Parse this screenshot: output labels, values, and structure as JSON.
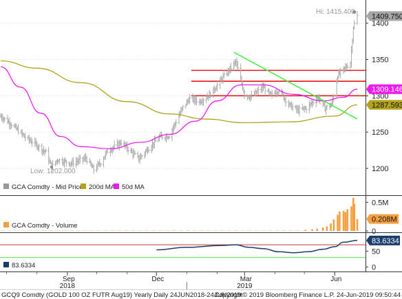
{
  "chart_data": {
    "type": "ohlc",
    "footer": {
      "left": "GCQ9 Comdty (GOLD 100 OZ FUTR  Aug19) Yearly  Daily 24JUN2018-24JUN2019",
      "right": "Copyright© 2019 Bloomberg Finance L.P.     24-Jun-2019 09:50:44"
    },
    "x_axis": {
      "months": [
        "Sep",
        "Dec",
        "Mar",
        "Jun"
      ],
      "years": [
        "2018",
        "2019"
      ]
    },
    "price_panel": {
      "ylim": [
        1165,
        1430
      ],
      "ticks": [
        1200,
        1250,
        1300,
        1350,
        1400
      ],
      "hi_label": "Hi: 1415.400",
      "low_label": "Low: 1202.000",
      "legend": [
        {
          "label": "GCA Comdty - Mid Price",
          "color": "#999999"
        },
        {
          "label": "200d MA",
          "color": "#b3a21b"
        },
        {
          "label": "50d MA",
          "color": "#ee1bee"
        }
      ],
      "last_price_tag": {
        "value": 1409.75,
        "label": "1409.750"
      },
      "ma50_tag": {
        "value": 1309.146,
        "label": "1309.146"
      },
      "ma200_tag": {
        "value": 1287.593,
        "label": "1287.593"
      },
      "horizontal_lines": [
        1335,
        1320,
        1300
      ],
      "trend_line": {
        "start": {
          "date": "2019-02-18",
          "value": 1360
        },
        "end": {
          "date": "2019-06-24",
          "value": 1268
        }
      },
      "price_anchors": [
        [
          "2018-06-25",
          1272
        ],
        [
          "2018-07-05",
          1262
        ],
        [
          "2018-07-20",
          1243
        ],
        [
          "2018-08-01",
          1232
        ],
        [
          "2018-08-10",
          1222
        ],
        [
          "2018-08-16",
          1202
        ],
        [
          "2018-08-22",
          1212
        ],
        [
          "2018-09-05",
          1207
        ],
        [
          "2018-09-20",
          1214
        ],
        [
          "2018-09-28",
          1198
        ],
        [
          "2018-10-05",
          1208
        ],
        [
          "2018-10-12",
          1224
        ],
        [
          "2018-10-26",
          1236
        ],
        [
          "2018-11-13",
          1213
        ],
        [
          "2018-11-23",
          1228
        ],
        [
          "2018-12-04",
          1243
        ],
        [
          "2018-12-14",
          1245
        ],
        [
          "2018-12-28",
          1284
        ],
        [
          "2019-01-04",
          1296
        ],
        [
          "2019-01-14",
          1292
        ],
        [
          "2019-01-25",
          1302
        ],
        [
          "2019-02-05",
          1322
        ],
        [
          "2019-02-20",
          1347
        ],
        [
          "2019-03-01",
          1302
        ],
        [
          "2019-03-07",
          1298
        ],
        [
          "2019-03-20",
          1312
        ],
        [
          "2019-03-28",
          1300
        ],
        [
          "2019-04-05",
          1308
        ],
        [
          "2019-04-15",
          1288
        ],
        [
          "2019-04-24",
          1280
        ],
        [
          "2019-05-03",
          1283
        ],
        [
          "2019-05-15",
          1298
        ],
        [
          "2019-05-22",
          1283
        ],
        [
          "2019-05-29",
          1288
        ],
        [
          "2019-06-04",
          1328
        ],
        [
          "2019-06-10",
          1336
        ],
        [
          "2019-06-17",
          1346
        ],
        [
          "2019-06-20",
          1395
        ],
        [
          "2019-06-24",
          1409.75
        ]
      ],
      "ma200_anchors": [
        [
          "2018-06-25",
          1348
        ],
        [
          "2018-08-01",
          1338
        ],
        [
          "2018-09-15",
          1318
        ],
        [
          "2018-11-01",
          1292
        ],
        [
          "2018-12-15",
          1275
        ],
        [
          "2019-01-20",
          1268
        ],
        [
          "2019-03-01",
          1263
        ],
        [
          "2019-04-15",
          1264
        ],
        [
          "2019-06-01",
          1272
        ],
        [
          "2019-06-24",
          1287.593
        ]
      ],
      "ma50_anchors": [
        [
          "2018-06-25",
          1340
        ],
        [
          "2018-07-15",
          1312
        ],
        [
          "2018-08-05",
          1276
        ],
        [
          "2018-08-25",
          1244
        ],
        [
          "2018-09-15",
          1230
        ],
        [
          "2018-10-15",
          1227
        ],
        [
          "2018-11-15",
          1236
        ],
        [
          "2018-12-15",
          1247
        ],
        [
          "2019-01-10",
          1265
        ],
        [
          "2019-02-01",
          1293
        ],
        [
          "2019-02-25",
          1315
        ],
        [
          "2019-03-20",
          1315
        ],
        [
          "2019-04-20",
          1302
        ],
        [
          "2019-05-20",
          1293
        ],
        [
          "2019-06-10",
          1298
        ],
        [
          "2019-06-24",
          1309.146
        ]
      ]
    },
    "volume_panel": {
      "ylim": [
        0,
        0.6
      ],
      "ticks": [
        {
          "value": 0,
          "label": "0"
        },
        {
          "value": 0.5,
          "label": "0.5M"
        }
      ],
      "legend": {
        "label": "GCA Comdty - Volume",
        "color": "#f5a040"
      },
      "last_tag": {
        "value": 0.208,
        "label": "0.208M"
      },
      "base_volume": 0.006,
      "recent_volume": [
        [
          "2019-05-02",
          0.02
        ],
        [
          "2019-05-09",
          0.03
        ],
        [
          "2019-05-14",
          0.04
        ],
        [
          "2019-05-20",
          0.06
        ],
        [
          "2019-05-24",
          0.08
        ],
        [
          "2019-05-28",
          0.13
        ],
        [
          "2019-05-31",
          0.2
        ],
        [
          "2019-06-04",
          0.28
        ],
        [
          "2019-06-06",
          0.34
        ],
        [
          "2019-06-10",
          0.35
        ],
        [
          "2019-06-12",
          0.33
        ],
        [
          "2019-06-14",
          0.38
        ],
        [
          "2019-06-18",
          0.43
        ],
        [
          "2019-06-20",
          0.58
        ],
        [
          "2019-06-21",
          0.47
        ],
        [
          "2019-06-24",
          0.208
        ]
      ]
    },
    "indicator_panel": {
      "ylim": [
        -10,
        105
      ],
      "ticks": [
        0,
        50
      ],
      "red_line": 70,
      "green_line": 30,
      "legend": {
        "label": "83.6334",
        "color": "#1a3d6b"
      },
      "last_tag": {
        "value": 83.6334,
        "label": "83.6334"
      },
      "anchors": [
        [
          "2018-12-01",
          54
        ],
        [
          "2019-01-01",
          62
        ],
        [
          "2019-02-05",
          68
        ],
        [
          "2019-02-20",
          70
        ],
        [
          "2019-03-05",
          62
        ],
        [
          "2019-03-20",
          58
        ],
        [
          "2019-04-05",
          48
        ],
        [
          "2019-04-20",
          45
        ],
        [
          "2019-05-05",
          48
        ],
        [
          "2019-05-20",
          56
        ],
        [
          "2019-06-01",
          64
        ],
        [
          "2019-06-10",
          78
        ],
        [
          "2019-06-24",
          83.6334
        ]
      ]
    }
  }
}
